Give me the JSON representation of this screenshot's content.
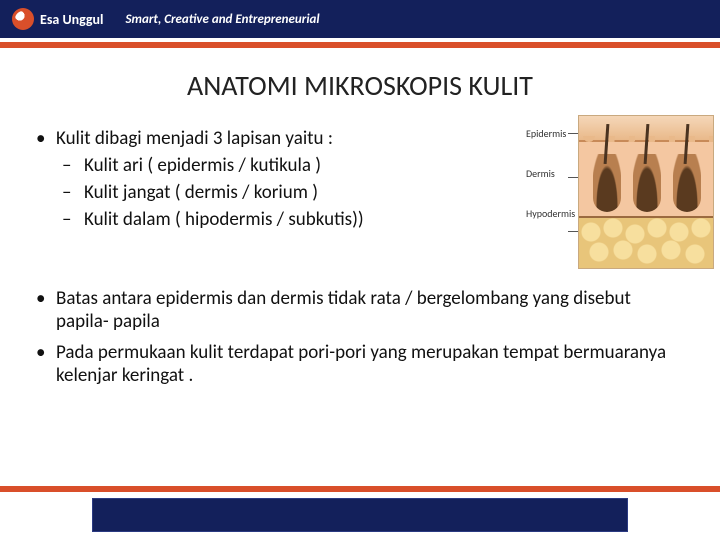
{
  "header": {
    "logo_text": "Esa Unggul",
    "tagline": "Smart, Creative and Entrepreneurial",
    "navy_color": "#13205b",
    "orange_color": "#d94f2a"
  },
  "slide": {
    "title": "ANATOMI MIKROSKOPIS KULIT",
    "title_fontsize": 28,
    "body_fontsize": 19,
    "text_color": "#111111",
    "background_color": "#ffffff"
  },
  "bullets": {
    "item1": "Kulit dibagi menjadi 3 lapisan yaitu :",
    "sub1": "Kulit ari ( epidermis / kutikula )",
    "sub2": "Kulit jangat ( dermis / korium )",
    "sub3": "Kulit dalam ( hipodermis / subkutis))",
    "item2": "Batas antara epidermis dan dermis tidak rata / bergelombang yang disebut papila- papila",
    "item3": "Pada permukaan kulit terdapat pori-pori yang merupakan tempat bermuaranya kelenjar keringat ."
  },
  "diagram": {
    "type": "illustration",
    "label_epidermis": "Epidermis",
    "label_dermis": "Dermis",
    "label_hypodermis": "Hypodermis",
    "colors": {
      "epidermis": "#e9b98a",
      "dermis": "#f4c7a1",
      "hypodermis_bg": "#e8c57a",
      "fat_cell": "#f7df9e",
      "follicle_dark": "#5a3a1f",
      "border": "#c9a97f"
    },
    "label_fontsize": 10
  }
}
